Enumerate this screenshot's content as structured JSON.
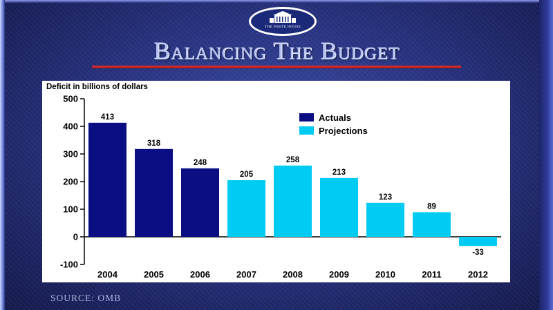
{
  "slide": {
    "title": "Balancing The Budget",
    "seal_text": "THE WHITE HOUSE",
    "source": "SOURCE: OMB"
  },
  "colors": {
    "actuals": "#0b0e82",
    "projections": "#00cbf2",
    "title_underline": "#d22a2a"
  },
  "chart_data": {
    "type": "bar",
    "ylabel": "Deficit in billions of dollars",
    "xlabel": "",
    "ylim": [
      -100,
      500
    ],
    "yticks": [
      -100,
      0,
      100,
      200,
      300,
      400,
      500
    ],
    "categories": [
      "2004",
      "2005",
      "2006",
      "2007",
      "2008",
      "2009",
      "2010",
      "2011",
      "2012"
    ],
    "values": [
      413,
      318,
      248,
      205,
      258,
      213,
      123,
      89,
      -33
    ],
    "value_labels": [
      "413",
      "318",
      "248",
      "205",
      "258",
      "213",
      "123",
      "89",
      "-33"
    ],
    "series_type": [
      "actual",
      "actual",
      "actual",
      "projection",
      "projection",
      "projection",
      "projection",
      "projection",
      "projection"
    ],
    "legend": [
      {
        "name": "Actuals",
        "key": "actual"
      },
      {
        "name": "Projections",
        "key": "projection"
      }
    ],
    "legend_position": "top-right",
    "grid": false
  }
}
